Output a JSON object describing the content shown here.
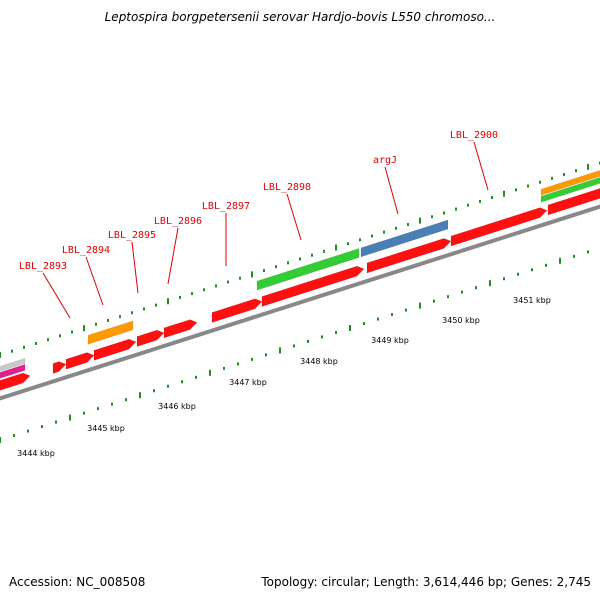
{
  "title": "Leptospira borgpetersenii serovar Hardjo-bovis L550 chromoso...",
  "footer": {
    "accession": "Accession: NC_008508",
    "summary": "Topology: circular; Length: 3,614,446 bp; Genes: 2,745"
  },
  "colors": {
    "backbone": "#888888",
    "gene_red": "#ff1010",
    "gene_green": "#33cc33",
    "gene_orange": "#ff9900",
    "gene_blue": "#4a7fb5",
    "gene_grey": "#c8c8c8",
    "gene_magenta": "#e0208c",
    "tick_green": "#1f8f1f",
    "label_red": "#e00000"
  },
  "gene_labels": [
    "LBL_2893",
    "LBL_2894",
    "LBL_2895",
    "LBL_2896",
    "LBL_2897",
    "LBL_2898",
    "argJ",
    "LBL_2900"
  ],
  "kbp_labels": [
    "3444 kbp",
    "3445 kbp",
    "3446 kbp",
    "3447 kbp",
    "3448 kbp",
    "3449 kbp",
    "3450 kbp",
    "3451 kbp"
  ]
}
